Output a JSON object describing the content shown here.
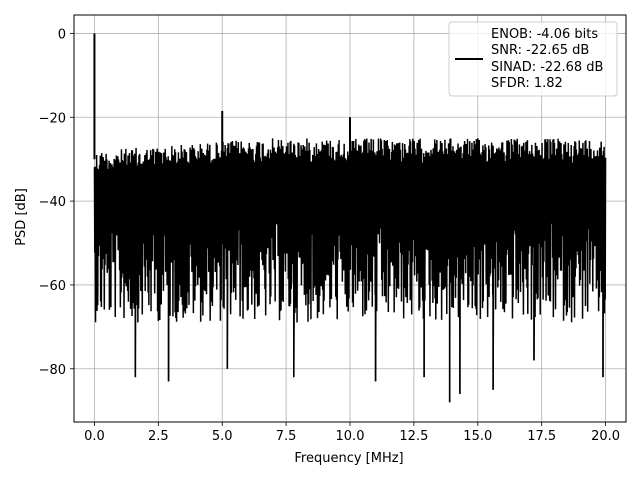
{
  "chart_data": {
    "type": "line",
    "title": "",
    "xlabel": "Frequency [MHz]",
    "ylabel": "PSD [dB]",
    "xlim": [
      -0.8,
      20.8
    ],
    "ylim": [
      -92.7,
      4.4
    ],
    "x_ticks": [
      0.0,
      2.5,
      5.0,
      7.5,
      10.0,
      12.5,
      15.0,
      17.5,
      20.0
    ],
    "x_tick_labels": [
      "0.0",
      "2.5",
      "5.0",
      "7.5",
      "10.0",
      "12.5",
      "15.0",
      "17.5",
      "20.0"
    ],
    "y_ticks": [
      0,
      -20,
      -40,
      -60,
      -80
    ],
    "y_tick_labels": [
      "0",
      "−20",
      "−40",
      "−60",
      "−80"
    ],
    "grid": true,
    "legend_position": "top-right",
    "series": [
      {
        "name": "ENOB: -4.06 bits\nSNR: -22.65 dB\nSINAD: -22.68 dB\nSFDR: 1.82",
        "color": "#000000",
        "x_range": [
          0.0,
          20.0
        ],
        "noise_floor_top_db": [
          -28.0,
          -25.0
        ],
        "noise_floor_bottom_db": [
          -70.0,
          -88.0
        ],
        "peaks": [
          {
            "x": 0.0,
            "y": 0.0
          },
          {
            "x": 5.0,
            "y": -18.5
          },
          {
            "x": 10.0,
            "y": -20.0
          }
        ],
        "deep_notches": [
          {
            "x": 1.6,
            "y": -82
          },
          {
            "x": 2.9,
            "y": -83
          },
          {
            "x": 5.2,
            "y": -80
          },
          {
            "x": 7.8,
            "y": -82
          },
          {
            "x": 11.0,
            "y": -83
          },
          {
            "x": 12.9,
            "y": -82
          },
          {
            "x": 13.9,
            "y": -88
          },
          {
            "x": 14.3,
            "y": -86
          },
          {
            "x": 15.6,
            "y": -85
          },
          {
            "x": 17.2,
            "y": -78
          },
          {
            "x": 19.9,
            "y": -82
          }
        ]
      }
    ],
    "legend": {
      "lines": [
        "ENOB: -4.06 bits",
        "SNR: -22.65 dB",
        "SINAD: -22.68 dB",
        "SFDR: 1.82"
      ]
    }
  }
}
